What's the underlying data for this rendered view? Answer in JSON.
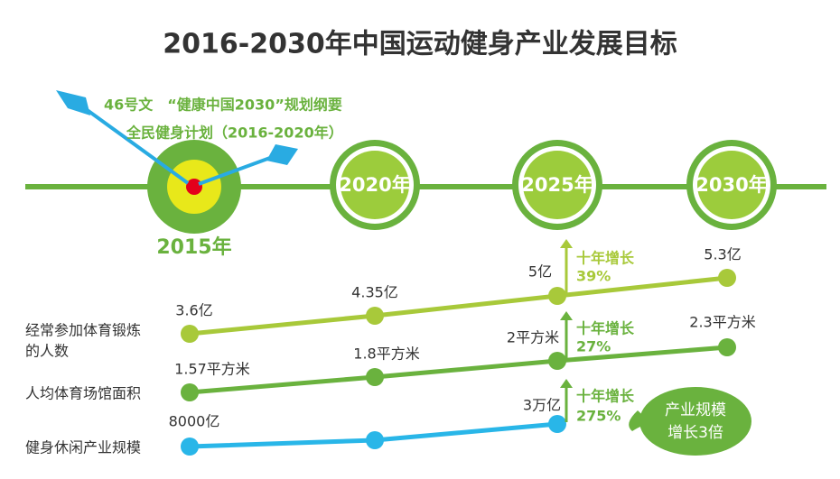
{
  "title": "2016-2030年中国运动健身产业发展目标",
  "timeline": {
    "years": [
      "2015年",
      "2020年",
      "2025年",
      "2030年"
    ]
  },
  "policies": [
    "46号文　“健康中国2030”规划纲要",
    "全民健身计划（2016-2020年）"
  ],
  "rows": [
    {
      "label": [
        "经常参加体育锻炼",
        "的人数"
      ],
      "points": [
        "3.6亿",
        "4.35亿",
        "5亿",
        "5.3亿"
      ],
      "growth": "十年增长",
      "growth_value": "39%"
    },
    {
      "label": [
        "人均体育场馆面积"
      ],
      "points": [
        "1.57平方米",
        "1.8平方米",
        "2平方米",
        "2.3平方米"
      ],
      "growth": "十年增长",
      "growth_value": "27%"
    },
    {
      "label": [
        "健身休闲产业规模"
      ],
      "points": [
        "8000亿",
        "3万亿"
      ],
      "growth": "十年增长",
      "growth_value": "275%"
    }
  ],
  "callout": [
    "产业规模",
    "增长3倍"
  ]
}
